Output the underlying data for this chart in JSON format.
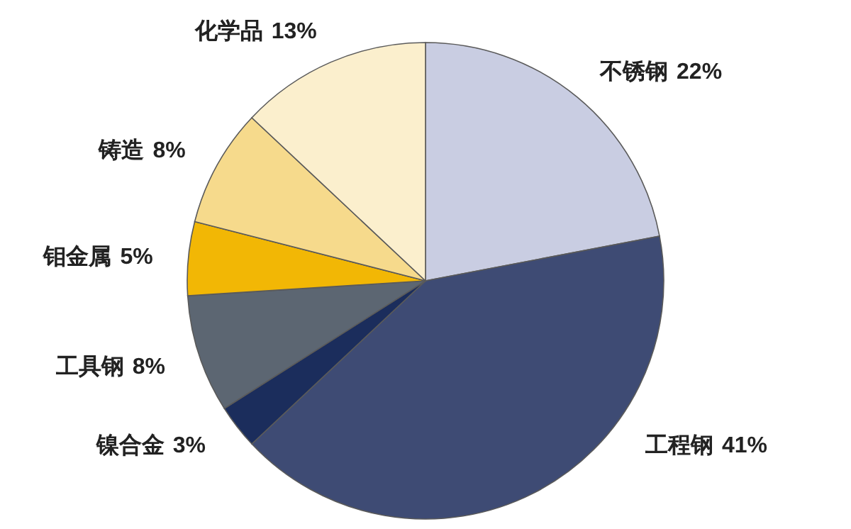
{
  "chart_data": {
    "type": "pie",
    "categories": [
      "不锈钢",
      "工程钢",
      "镍合金",
      "工具钢",
      "钼金属",
      "铸造",
      "化学品"
    ],
    "values": [
      22,
      41,
      3,
      8,
      5,
      8,
      13
    ],
    "value_labels": [
      "22%",
      "41%",
      "3%",
      "8%",
      "5%",
      "8%",
      "13%"
    ],
    "colors": [
      "#c9cde2",
      "#3e4b74",
      "#1b2d5c",
      "#5c6672",
      "#f2b705",
      "#f6da8c",
      "#fbefcd"
    ]
  }
}
